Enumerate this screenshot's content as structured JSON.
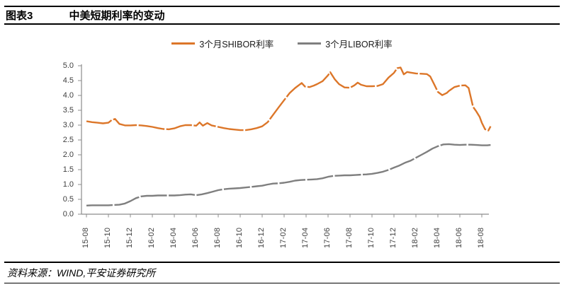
{
  "header": {
    "figure_label": "图表3",
    "title": "中美短期利率的变动"
  },
  "footer": {
    "source": "资料来源：WIND,平安证券研究所"
  },
  "chart_data": {
    "type": "line",
    "title": "中美短期利率的变动",
    "xlabel": "",
    "ylabel": "",
    "ylim": [
      0.0,
      5.0
    ],
    "y_tick_step": 0.5,
    "y_ticks": [
      "0.0",
      "0.5",
      "1.0",
      "1.5",
      "2.0",
      "2.5",
      "3.0",
      "3.5",
      "4.0",
      "4.5",
      "5.0"
    ],
    "categories": [
      "15-08",
      "15-10",
      "15-12",
      "16-02",
      "16-04",
      "16-06",
      "16-08",
      "16-10",
      "16-12",
      "17-02",
      "17-04",
      "17-06",
      "17-08",
      "17-10",
      "17-12",
      "18-02",
      "18-04",
      "18-06",
      "18-08"
    ],
    "x_unit": "months since 2015-08, category ticks every 2 months",
    "grid": false,
    "legend_position": "top-center",
    "axis_color": "#8c8c8c",
    "series": [
      {
        "name": "3个月SHIBOR利率",
        "color": "#DC7629",
        "points": [
          [
            0,
            3.13
          ],
          [
            0.5,
            3.1
          ],
          [
            1,
            3.08
          ],
          [
            1.5,
            3.06
          ],
          [
            2,
            3.08
          ],
          [
            2.3,
            3.17
          ],
          [
            2.6,
            3.21
          ],
          [
            3,
            3.04
          ],
          [
            3.5,
            2.99
          ],
          [
            4,
            2.99
          ],
          [
            4.5,
            3.0
          ],
          [
            5,
            2.99
          ],
          [
            5.5,
            2.97
          ],
          [
            6,
            2.94
          ],
          [
            6.5,
            2.9
          ],
          [
            7,
            2.87
          ],
          [
            7.5,
            2.86
          ],
          [
            8,
            2.89
          ],
          [
            8.5,
            2.96
          ],
          [
            9,
            3.0
          ],
          [
            9.5,
            3.0
          ],
          [
            10,
            2.98
          ],
          [
            10.3,
            3.09
          ],
          [
            10.6,
            2.98
          ],
          [
            11,
            3.07
          ],
          [
            11.4,
            2.99
          ],
          [
            12,
            2.94
          ],
          [
            12.5,
            2.9
          ],
          [
            13,
            2.87
          ],
          [
            13.5,
            2.85
          ],
          [
            14,
            2.83
          ],
          [
            14.5,
            2.83
          ],
          [
            15,
            2.86
          ],
          [
            15.5,
            2.9
          ],
          [
            16,
            2.96
          ],
          [
            16.5,
            3.1
          ],
          [
            17,
            3.35
          ],
          [
            17.5,
            3.6
          ],
          [
            18,
            3.84
          ],
          [
            18.5,
            4.08
          ],
          [
            19,
            4.25
          ],
          [
            19.6,
            4.42
          ],
          [
            19.9,
            4.3
          ],
          [
            20.3,
            4.28
          ],
          [
            20.7,
            4.33
          ],
          [
            21,
            4.38
          ],
          [
            21.5,
            4.48
          ],
          [
            22,
            4.68
          ],
          [
            22.2,
            4.78
          ],
          [
            22.6,
            4.55
          ],
          [
            23,
            4.38
          ],
          [
            23.5,
            4.27
          ],
          [
            24,
            4.26
          ],
          [
            24.4,
            4.34
          ],
          [
            24.7,
            4.43
          ],
          [
            25,
            4.36
          ],
          [
            25.5,
            4.31
          ],
          [
            26,
            4.31
          ],
          [
            26.5,
            4.32
          ],
          [
            27,
            4.38
          ],
          [
            27.5,
            4.6
          ],
          [
            28,
            4.76
          ],
          [
            28.3,
            4.92
          ],
          [
            28.6,
            4.94
          ],
          [
            28.9,
            4.71
          ],
          [
            29.2,
            4.79
          ],
          [
            29.5,
            4.77
          ],
          [
            30,
            4.74
          ],
          [
            30.5,
            4.73
          ],
          [
            31,
            4.72
          ],
          [
            31.3,
            4.64
          ],
          [
            31.7,
            4.35
          ],
          [
            32,
            4.12
          ],
          [
            32.4,
            4.01
          ],
          [
            32.8,
            4.08
          ],
          [
            33,
            4.15
          ],
          [
            33.5,
            4.28
          ],
          [
            34,
            4.33
          ],
          [
            34.5,
            4.34
          ],
          [
            34.8,
            4.25
          ],
          [
            35.2,
            3.62
          ],
          [
            35.5,
            3.46
          ],
          [
            35.8,
            3.28
          ],
          [
            36,
            3.08
          ],
          [
            36.3,
            2.86
          ],
          [
            36.6,
            2.82
          ],
          [
            36.8,
            2.96
          ]
        ]
      },
      {
        "name": "3个月LIBOR利率",
        "color": "#7F7F7F",
        "points": [
          [
            0,
            0.29
          ],
          [
            0.5,
            0.3
          ],
          [
            1,
            0.3
          ],
          [
            1.5,
            0.3
          ],
          [
            2,
            0.3
          ],
          [
            2.5,
            0.31
          ],
          [
            3,
            0.32
          ],
          [
            3.5,
            0.36
          ],
          [
            4,
            0.44
          ],
          [
            4.5,
            0.54
          ],
          [
            5,
            0.6
          ],
          [
            5.5,
            0.62
          ],
          [
            6,
            0.62
          ],
          [
            6.5,
            0.63
          ],
          [
            7,
            0.63
          ],
          [
            7.5,
            0.63
          ],
          [
            8,
            0.63
          ],
          [
            8.5,
            0.64
          ],
          [
            9,
            0.66
          ],
          [
            9.5,
            0.67
          ],
          [
            10,
            0.64
          ],
          [
            10.5,
            0.67
          ],
          [
            11,
            0.71
          ],
          [
            11.5,
            0.76
          ],
          [
            12,
            0.81
          ],
          [
            12.5,
            0.84
          ],
          [
            13,
            0.86
          ],
          [
            13.5,
            0.87
          ],
          [
            14,
            0.88
          ],
          [
            14.5,
            0.9
          ],
          [
            15,
            0.92
          ],
          [
            15.5,
            0.94
          ],
          [
            16,
            0.96
          ],
          [
            16.5,
            1.0
          ],
          [
            17,
            1.03
          ],
          [
            17.5,
            1.04
          ],
          [
            18,
            1.06
          ],
          [
            18.5,
            1.09
          ],
          [
            19,
            1.13
          ],
          [
            19.5,
            1.15
          ],
          [
            20,
            1.16
          ],
          [
            20.5,
            1.17
          ],
          [
            21,
            1.18
          ],
          [
            21.5,
            1.21
          ],
          [
            22,
            1.26
          ],
          [
            22.5,
            1.29
          ],
          [
            23,
            1.3
          ],
          [
            23.5,
            1.31
          ],
          [
            24,
            1.31
          ],
          [
            24.5,
            1.32
          ],
          [
            25,
            1.33
          ],
          [
            25.5,
            1.34
          ],
          [
            26,
            1.36
          ],
          [
            26.5,
            1.39
          ],
          [
            27,
            1.43
          ],
          [
            27.5,
            1.49
          ],
          [
            28,
            1.57
          ],
          [
            28.5,
            1.64
          ],
          [
            29,
            1.73
          ],
          [
            29.5,
            1.8
          ],
          [
            30,
            1.9
          ],
          [
            30.5,
            2.0
          ],
          [
            31,
            2.1
          ],
          [
            31.5,
            2.21
          ],
          [
            32,
            2.29
          ],
          [
            32.5,
            2.35
          ],
          [
            33,
            2.36
          ],
          [
            33.5,
            2.34
          ],
          [
            34,
            2.33
          ],
          [
            34.5,
            2.34
          ],
          [
            35,
            2.34
          ],
          [
            35.5,
            2.33
          ],
          [
            36,
            2.32
          ],
          [
            36.5,
            2.32
          ],
          [
            36.8,
            2.33
          ]
        ]
      }
    ]
  }
}
